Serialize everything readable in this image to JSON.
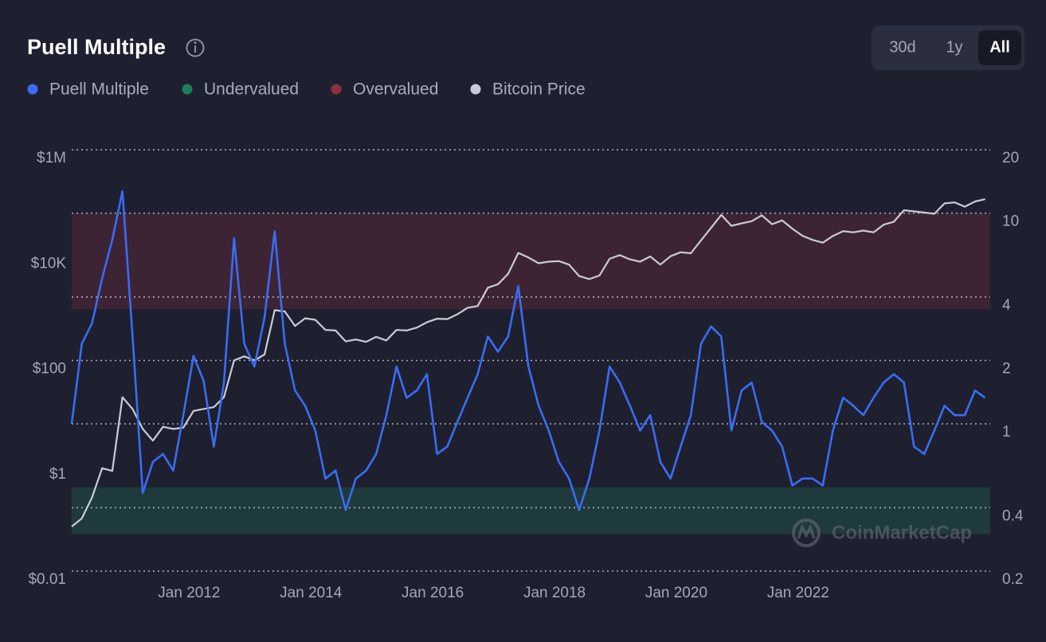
{
  "header": {
    "title": "Puell Multiple",
    "ranges": [
      "30d",
      "1y",
      "All"
    ],
    "selected_range": 2
  },
  "watermark": "CoinMarketCap",
  "chart_data": {
    "type": "line",
    "x": [
      "2010-08",
      "2010-10",
      "2010-12",
      "2011-02",
      "2011-04",
      "2011-06",
      "2011-08",
      "2011-10",
      "2011-12",
      "2012-02",
      "2012-04",
      "2012-06",
      "2012-08",
      "2012-10",
      "2012-12",
      "2013-02",
      "2013-04",
      "2013-06",
      "2013-08",
      "2013-10",
      "2013-12",
      "2014-02",
      "2014-04",
      "2014-06",
      "2014-08",
      "2014-10",
      "2014-12",
      "2015-02",
      "2015-04",
      "2015-06",
      "2015-08",
      "2015-10",
      "2015-12",
      "2016-02",
      "2016-04",
      "2016-06",
      "2016-08",
      "2016-10",
      "2016-12",
      "2017-02",
      "2017-04",
      "2017-06",
      "2017-08",
      "2017-10",
      "2017-12",
      "2018-02",
      "2018-04",
      "2018-06",
      "2018-08",
      "2018-10",
      "2018-12",
      "2019-02",
      "2019-04",
      "2019-06",
      "2019-08",
      "2019-10",
      "2019-12",
      "2020-02",
      "2020-04",
      "2020-06",
      "2020-08",
      "2020-10",
      "2020-12",
      "2021-02",
      "2021-04",
      "2021-06",
      "2021-08",
      "2021-10",
      "2021-12",
      "2022-02",
      "2022-04",
      "2022-06",
      "2022-08",
      "2022-10",
      "2022-12",
      "2023-02",
      "2023-04",
      "2023-06",
      "2023-08",
      "2023-10",
      "2023-12",
      "2024-02",
      "2024-04",
      "2024-06",
      "2024-08",
      "2024-10",
      "2024-12",
      "2025-02",
      "2025-04",
      "2025-06",
      "2025-08"
    ],
    "series": [
      {
        "name": "Puell Multiple",
        "color": "#3a6cf4",
        "axis": "y2",
        "values": [
          1.0,
          2.4,
          3.0,
          4.9,
          7.5,
          12.7,
          2.6,
          0.47,
          0.66,
          0.72,
          0.6,
          1.1,
          2.1,
          1.6,
          0.78,
          1.57,
          7.6,
          2.4,
          1.87,
          3.2,
          8.2,
          2.4,
          1.44,
          1.22,
          0.93,
          0.55,
          0.6,
          0.39,
          0.55,
          0.6,
          0.72,
          1.1,
          1.87,
          1.33,
          1.44,
          1.72,
          0.72,
          0.78,
          1.02,
          1.33,
          1.72,
          2.6,
          2.2,
          2.6,
          4.5,
          1.87,
          1.22,
          0.93,
          0.66,
          0.55,
          0.39,
          0.55,
          0.93,
          1.87,
          1.57,
          1.22,
          0.93,
          1.1,
          0.66,
          0.55,
          0.78,
          1.1,
          2.4,
          2.9,
          2.6,
          0.93,
          1.44,
          1.57,
          1.02,
          0.93,
          0.78,
          0.51,
          0.55,
          0.55,
          0.51,
          0.93,
          1.33,
          1.22,
          1.1,
          1.33,
          1.57,
          1.72,
          1.57,
          0.78,
          0.72,
          0.93,
          1.22,
          1.1,
          1.1,
          1.44,
          1.33
        ]
      },
      {
        "name": "Bitcoin Price",
        "color": "#c9cbd6",
        "axis": "y",
        "values": [
          0.07,
          0.1,
          0.25,
          0.9,
          0.8,
          20,
          12,
          5,
          3,
          5.5,
          5,
          5.3,
          11,
          12,
          13,
          20,
          100,
          120,
          100,
          130,
          900,
          850,
          450,
          630,
          590,
          380,
          370,
          230,
          250,
          225,
          280,
          240,
          380,
          370,
          420,
          530,
          620,
          610,
          750,
          1000,
          1080,
          2400,
          2800,
          4400,
          11000,
          9000,
          7000,
          7500,
          7700,
          6600,
          4000,
          3500,
          4100,
          8500,
          10000,
          8300,
          7500,
          9400,
          6600,
          9500,
          11300,
          10800,
          19000,
          33000,
          58000,
          36000,
          40000,
          44000,
          57000,
          38500,
          45500,
          31700,
          23300,
          19400,
          17200,
          23100,
          28500,
          27000,
          29200,
          27000,
          37700,
          43000,
          71000,
          67500,
          64000,
          60800,
          96000,
          100000,
          83000,
          104000,
          115000
        ]
      }
    ],
    "bands": [
      {
        "name": "Undervalued",
        "color": "#1f7d5c",
        "range": [
          0.3,
          0.5
        ],
        "axis": "y2"
      },
      {
        "name": "Overvalued",
        "color": "#8c2f40",
        "range": [
          3.5,
          10
        ],
        "axis": "y2"
      }
    ],
    "xlim": [
      "2010-08",
      "2025-09"
    ],
    "xticks": [
      {
        "value": "2012-01",
        "label": "Jan 2012"
      },
      {
        "value": "2014-01",
        "label": "Jan 2014"
      },
      {
        "value": "2016-01",
        "label": "Jan 2016"
      },
      {
        "value": "2018-01",
        "label": "Jan 2018"
      },
      {
        "value": "2020-01",
        "label": "Jan 2020"
      },
      {
        "value": "2022-01",
        "label": "Jan 2022"
      }
    ],
    "ylim": [
      0.01,
      1000000
    ],
    "ylog": true,
    "yticks": [
      {
        "value": 1000000,
        "label": "$1M"
      },
      {
        "value": 10000,
        "label": "$10K"
      },
      {
        "value": 100,
        "label": "$100"
      },
      {
        "value": 1,
        "label": "$1"
      },
      {
        "value": 0.01,
        "label": "$0.01"
      }
    ],
    "y2lim": [
      0.2,
      20
    ],
    "y2log": true,
    "y2ticks": [
      20,
      10,
      4,
      2,
      1,
      0.4,
      0.2
    ],
    "grid": true
  }
}
